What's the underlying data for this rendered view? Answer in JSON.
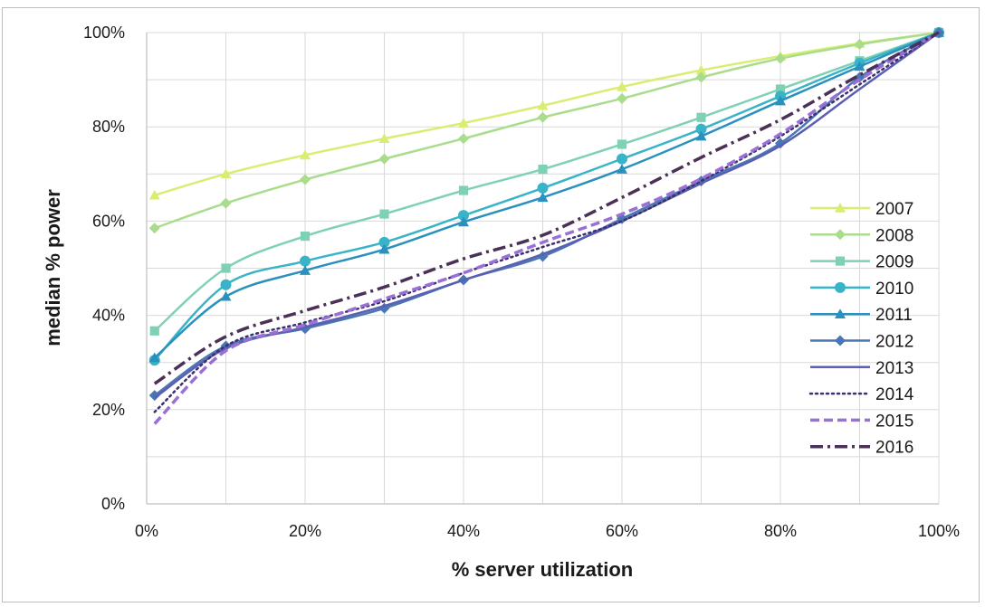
{
  "chart_data": {
    "type": "line",
    "title": "",
    "xlabel": "% server utilization",
    "ylabel": "median % power",
    "x": [
      1,
      10,
      20,
      30,
      40,
      50,
      60,
      70,
      80,
      90,
      100
    ],
    "xlim": [
      0,
      100
    ],
    "ylim": [
      0,
      100
    ],
    "x_ticks": [
      "0%",
      "20%",
      "40%",
      "60%",
      "80%",
      "100%"
    ],
    "y_ticks": [
      "0%",
      "20%",
      "40%",
      "60%",
      "80%",
      "100%"
    ],
    "grid": true,
    "legend_position": "right",
    "series": [
      {
        "name": "2007",
        "color": "#d9ed73",
        "marker": "triangle",
        "dash": "solid",
        "values": [
          65.5,
          70,
          74,
          77.5,
          80.8,
          84.5,
          88.5,
          92,
          95,
          97.7,
          100
        ]
      },
      {
        "name": "2008",
        "color": "#a9dc8c",
        "marker": "diamond",
        "dash": "solid",
        "values": [
          58.5,
          63.8,
          68.8,
          73.2,
          77.5,
          82,
          86,
          90.5,
          94.5,
          97.5,
          100
        ]
      },
      {
        "name": "2009",
        "color": "#7fd1b6",
        "marker": "square",
        "dash": "solid",
        "values": [
          36.7,
          50,
          56.8,
          61.5,
          66.5,
          71,
          76.3,
          82,
          88,
          94,
          100
        ]
      },
      {
        "name": "2010",
        "color": "#39b3c8",
        "marker": "circle",
        "dash": "solid",
        "values": [
          30.5,
          46.5,
          51.5,
          55.5,
          61.2,
          67,
          73.2,
          79.5,
          86.5,
          93.5,
          100
        ]
      },
      {
        "name": "2011",
        "color": "#2a90bd",
        "marker": "triangle",
        "dash": "solid",
        "values": [
          31,
          44,
          49.5,
          54,
          59.8,
          65,
          71,
          78,
          85.5,
          92.8,
          100
        ]
      },
      {
        "name": "2012",
        "color": "#4a76b4",
        "marker": "diamond",
        "dash": "solid",
        "values": [
          23,
          33.5,
          37.2,
          41.5,
          47.5,
          52.5,
          60.5,
          68.5,
          76.5,
          90.5,
          100
        ]
      },
      {
        "name": "2013",
        "color": "#5b5fb3",
        "marker": "none",
        "dash": "solid",
        "values": [
          22.5,
          33,
          37.5,
          42,
          47.5,
          53,
          60,
          68,
          76,
          88,
          100
        ]
      },
      {
        "name": "2014",
        "color": "#3b2f6e",
        "marker": "none",
        "dash": "dotted",
        "values": [
          19.5,
          33.5,
          38.5,
          43,
          49,
          54.5,
          60,
          68.5,
          78,
          89,
          100
        ]
      },
      {
        "name": "2015",
        "color": "#9a6fd6",
        "marker": "none",
        "dash": "dashed",
        "values": [
          17,
          32.5,
          38,
          43.5,
          49,
          55.5,
          61.5,
          69,
          78.5,
          90,
          100
        ]
      },
      {
        "name": "2016",
        "color": "#4b3157",
        "marker": "none",
        "dash": "dashdot",
        "values": [
          25.5,
          35.5,
          41,
          46,
          52,
          57,
          65,
          73.5,
          81.5,
          91,
          100
        ]
      }
    ]
  }
}
